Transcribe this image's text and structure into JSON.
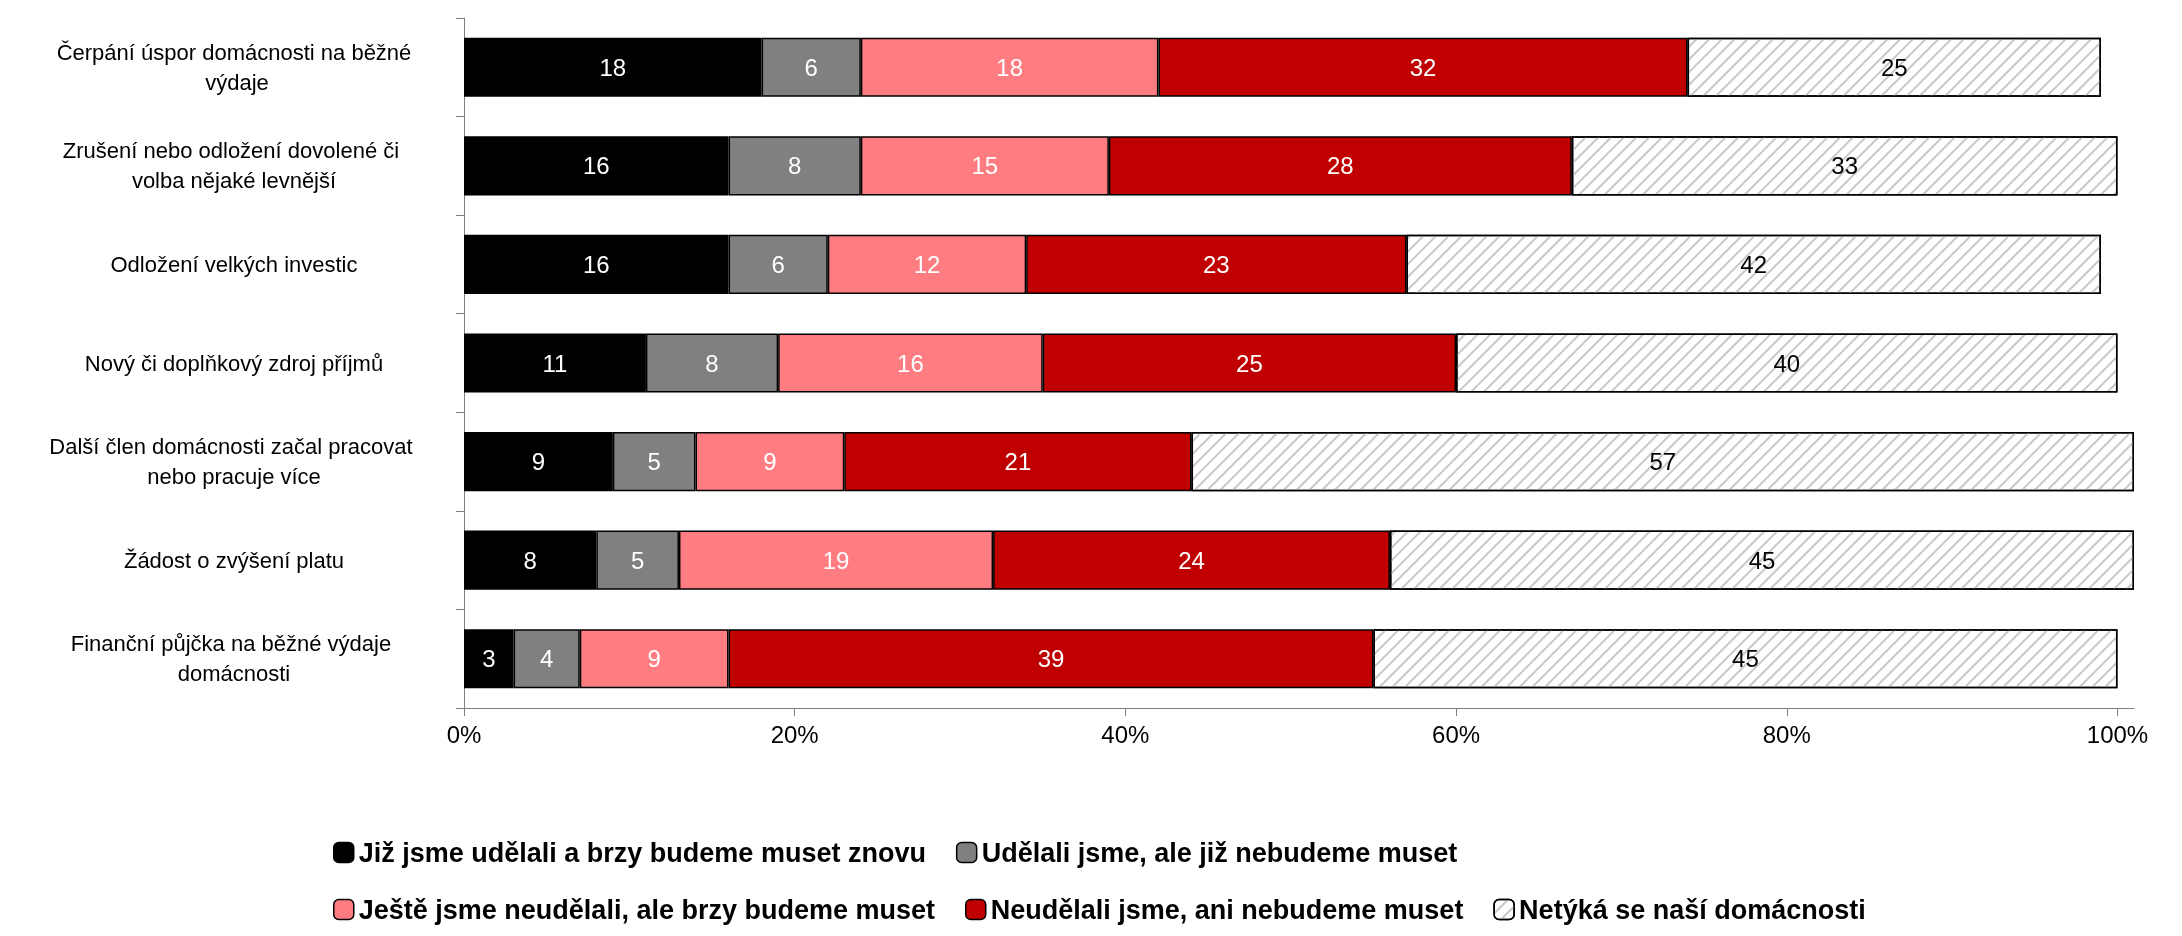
{
  "chart_data": {
    "type": "bar",
    "orientation": "horizontal",
    "stacked": true,
    "data_labels": true,
    "grid": false,
    "legend": "bottom",
    "categories": [
      "Čerpání úspor domácnosti na běžné výdaje",
      "Zrušení nebo odložení dovolené či volba nějaké levnější",
      "Odložení velkých investic",
      "Nový či doplňkový zdroj příjmů",
      "Další člen domácnosti začal pracovat nebo pracuje více",
      "Žádost o zvýšení platu",
      "Finanční půjčka na běžné výdaje domácnosti"
    ],
    "xlim": [
      0,
      101
    ],
    "xticks": [
      {
        "value": 0,
        "label": "0%"
      },
      {
        "value": 20,
        "label": "20%"
      },
      {
        "value": 40,
        "label": "40%"
      },
      {
        "value": 60,
        "label": "60%"
      },
      {
        "value": 80,
        "label": "80%"
      },
      {
        "value": 100,
        "label": "100%"
      }
    ],
    "series": [
      {
        "name": "Již jsme udělali a brzy budeme muset znovu",
        "color": "#000000",
        "values": [
          18,
          16,
          16,
          11,
          9,
          8,
          3
        ]
      },
      {
        "name": "Udělali jsme, ale již nebudeme muset",
        "color": "#808080",
        "values": [
          6,
          8,
          6,
          8,
          5,
          5,
          4
        ]
      },
      {
        "name": "Ještě jsme neudělali, ale brzy budeme muset",
        "color": "#ff7c80",
        "values": [
          18,
          15,
          12,
          16,
          9,
          19,
          9
        ]
      },
      {
        "name": "Neudělali jsme, ani nebudeme muset",
        "color": "#c00000",
        "values": [
          32,
          28,
          23,
          25,
          21,
          24,
          39
        ]
      },
      {
        "name": "Netýká se naší domácnosti",
        "color": "#ffffff",
        "values": [
          25,
          33,
          42,
          40,
          57,
          45,
          45
        ]
      }
    ]
  }
}
